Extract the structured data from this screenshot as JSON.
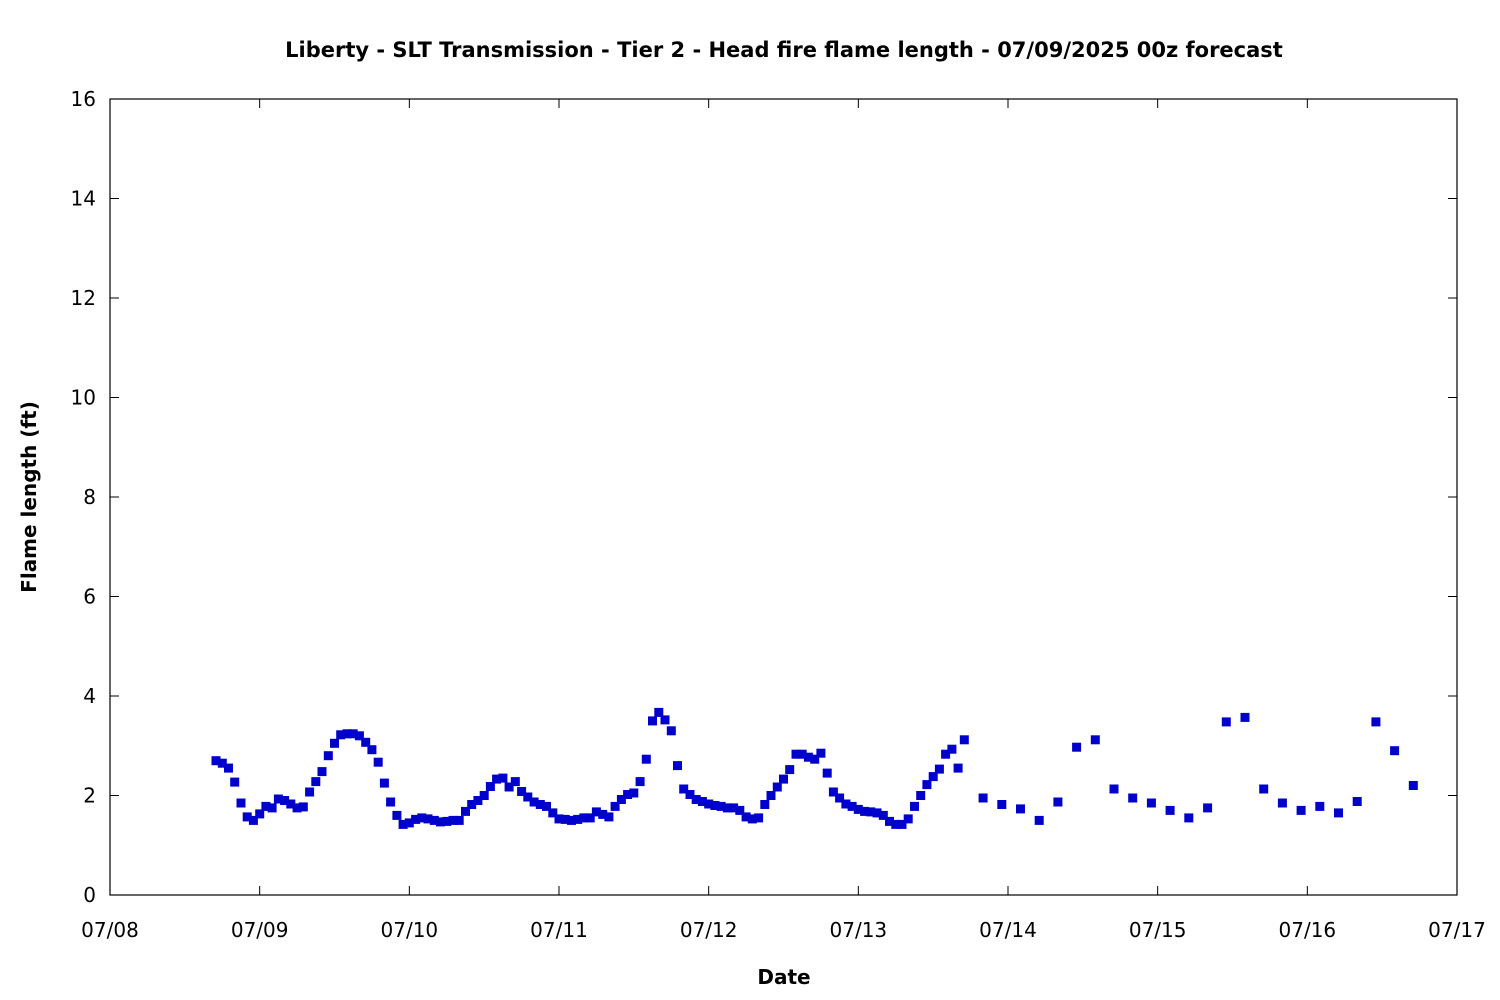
{
  "chart_data": {
    "type": "scatter",
    "title": "Liberty - SLT Transmission - Tier 2 - Head fire flame length - 07/09/2025 00z forecast",
    "xlabel": "Date",
    "ylabel": "Flame length (ft)",
    "x_ticks": [
      "07/08",
      "07/09",
      "07/10",
      "07/11",
      "07/12",
      "07/13",
      "07/14",
      "07/15",
      "07/16",
      "07/17"
    ],
    "x_range": [
      "07/08 00:00",
      "07/17 00:00"
    ],
    "y_ticks": [
      "0",
      "2",
      "4",
      "6",
      "8",
      "10",
      "12",
      "14",
      "16"
    ],
    "ylim": [
      0,
      16
    ],
    "grid": false,
    "legend": "none",
    "marker": "square",
    "color": "#0000cc",
    "series": [
      {
        "x": [
          "07/08 17:00",
          "07/08 18:00",
          "07/08 19:00",
          "07/08 20:00",
          "07/08 21:00",
          "07/08 22:00",
          "07/08 23:00",
          "07/09 00:00",
          "07/09 01:00",
          "07/09 02:00",
          "07/09 03:00",
          "07/09 04:00",
          "07/09 05:00",
          "07/09 06:00",
          "07/09 07:00",
          "07/09 08:00",
          "07/09 09:00",
          "07/09 10:00",
          "07/09 11:00",
          "07/09 12:00",
          "07/09 13:00",
          "07/09 14:00",
          "07/09 15:00",
          "07/09 16:00",
          "07/09 17:00",
          "07/09 18:00",
          "07/09 19:00",
          "07/09 20:00",
          "07/09 21:00",
          "07/09 22:00",
          "07/09 23:00",
          "07/10 00:00",
          "07/10 01:00",
          "07/10 02:00",
          "07/10 03:00",
          "07/10 04:00",
          "07/10 05:00",
          "07/10 06:00",
          "07/10 07:00",
          "07/10 08:00",
          "07/10 09:00",
          "07/10 10:00",
          "07/10 11:00",
          "07/10 12:00",
          "07/10 13:00",
          "07/10 14:00",
          "07/10 15:00",
          "07/10 16:00",
          "07/10 17:00",
          "07/10 18:00",
          "07/10 19:00",
          "07/10 20:00",
          "07/10 21:00",
          "07/10 22:00",
          "07/10 23:00",
          "07/11 00:00",
          "07/11 01:00",
          "07/11 02:00",
          "07/11 03:00",
          "07/11 04:00",
          "07/11 05:00",
          "07/11 06:00",
          "07/11 07:00",
          "07/11 08:00",
          "07/11 09:00",
          "07/11 10:00",
          "07/11 11:00",
          "07/11 12:00",
          "07/11 13:00",
          "07/11 14:00",
          "07/11 15:00",
          "07/11 16:00",
          "07/11 17:00",
          "07/11 18:00",
          "07/11 19:00",
          "07/11 20:00",
          "07/11 21:00",
          "07/11 22:00",
          "07/11 23:00",
          "07/12 00:00",
          "07/12 01:00",
          "07/12 02:00",
          "07/12 03:00",
          "07/12 04:00",
          "07/12 05:00",
          "07/12 06:00",
          "07/12 07:00",
          "07/12 08:00",
          "07/12 09:00",
          "07/12 10:00",
          "07/12 11:00",
          "07/12 12:00",
          "07/12 13:00",
          "07/12 14:00",
          "07/12 15:00",
          "07/12 16:00",
          "07/12 17:00",
          "07/12 18:00",
          "07/12 19:00",
          "07/12 20:00",
          "07/12 21:00",
          "07/12 22:00",
          "07/12 23:00",
          "07/13 00:00",
          "07/13 01:00",
          "07/13 02:00",
          "07/13 03:00",
          "07/13 04:00",
          "07/13 05:00",
          "07/13 06:00",
          "07/13 07:00",
          "07/13 08:00",
          "07/13 09:00",
          "07/13 10:00",
          "07/13 11:00",
          "07/13 12:00",
          "07/13 13:00",
          "07/13 14:00",
          "07/13 15:00",
          "07/13 16:00",
          "07/13 17:00",
          "07/13 20:00",
          "07/13 23:00",
          "07/14 02:00",
          "07/14 05:00",
          "07/14 08:00",
          "07/14 11:00",
          "07/14 14:00",
          "07/14 17:00",
          "07/14 20:00",
          "07/14 23:00",
          "07/15 02:00",
          "07/15 05:00",
          "07/15 08:00",
          "07/15 11:00",
          "07/15 14:00",
          "07/15 17:00",
          "07/15 20:00",
          "07/15 23:00",
          "07/16 02:00",
          "07/16 05:00",
          "07/16 08:00",
          "07/16 11:00",
          "07/16 14:00",
          "07/16 17:00"
        ],
        "y": [
          2.7,
          2.65,
          2.55,
          2.27,
          1.85,
          1.57,
          1.5,
          1.63,
          1.78,
          1.75,
          1.93,
          1.9,
          1.83,
          1.75,
          1.77,
          2.07,
          2.28,
          2.48,
          2.8,
          3.05,
          3.22,
          3.24,
          3.24,
          3.2,
          3.07,
          2.92,
          2.67,
          2.25,
          1.87,
          1.6,
          1.42,
          1.45,
          1.52,
          1.55,
          1.53,
          1.5,
          1.47,
          1.48,
          1.5,
          1.5,
          1.68,
          1.82,
          1.9,
          2.0,
          2.18,
          2.33,
          2.35,
          2.17,
          2.28,
          2.08,
          1.97,
          1.87,
          1.82,
          1.78,
          1.65,
          1.53,
          1.52,
          1.5,
          1.52,
          1.55,
          1.55,
          1.67,
          1.62,
          1.57,
          1.78,
          1.92,
          2.02,
          2.05,
          2.28,
          2.73,
          3.5,
          3.67,
          3.52,
          3.3,
          2.6,
          2.13,
          2.02,
          1.92,
          1.88,
          1.83,
          1.8,
          1.78,
          1.75,
          1.75,
          1.7,
          1.57,
          1.53,
          1.55,
          1.82,
          2.0,
          2.17,
          2.33,
          2.52,
          2.83,
          2.83,
          2.77,
          2.73,
          2.85,
          2.45,
          2.07,
          1.95,
          1.83,
          1.78,
          1.72,
          1.68,
          1.67,
          1.65,
          1.6,
          1.48,
          1.42,
          1.42,
          1.53,
          1.78,
          2.0,
          2.22,
          2.38,
          2.53,
          2.83,
          2.93,
          2.55,
          3.12,
          1.95,
          1.82,
          1.73,
          1.5,
          1.87,
          2.97,
          3.12,
          2.13,
          1.95,
          1.85,
          1.7,
          1.55,
          1.75,
          3.48,
          3.57,
          2.13,
          1.85,
          1.7,
          1.78,
          1.65,
          1.88,
          3.48,
          2.9,
          2.2
        ]
      }
    ]
  }
}
